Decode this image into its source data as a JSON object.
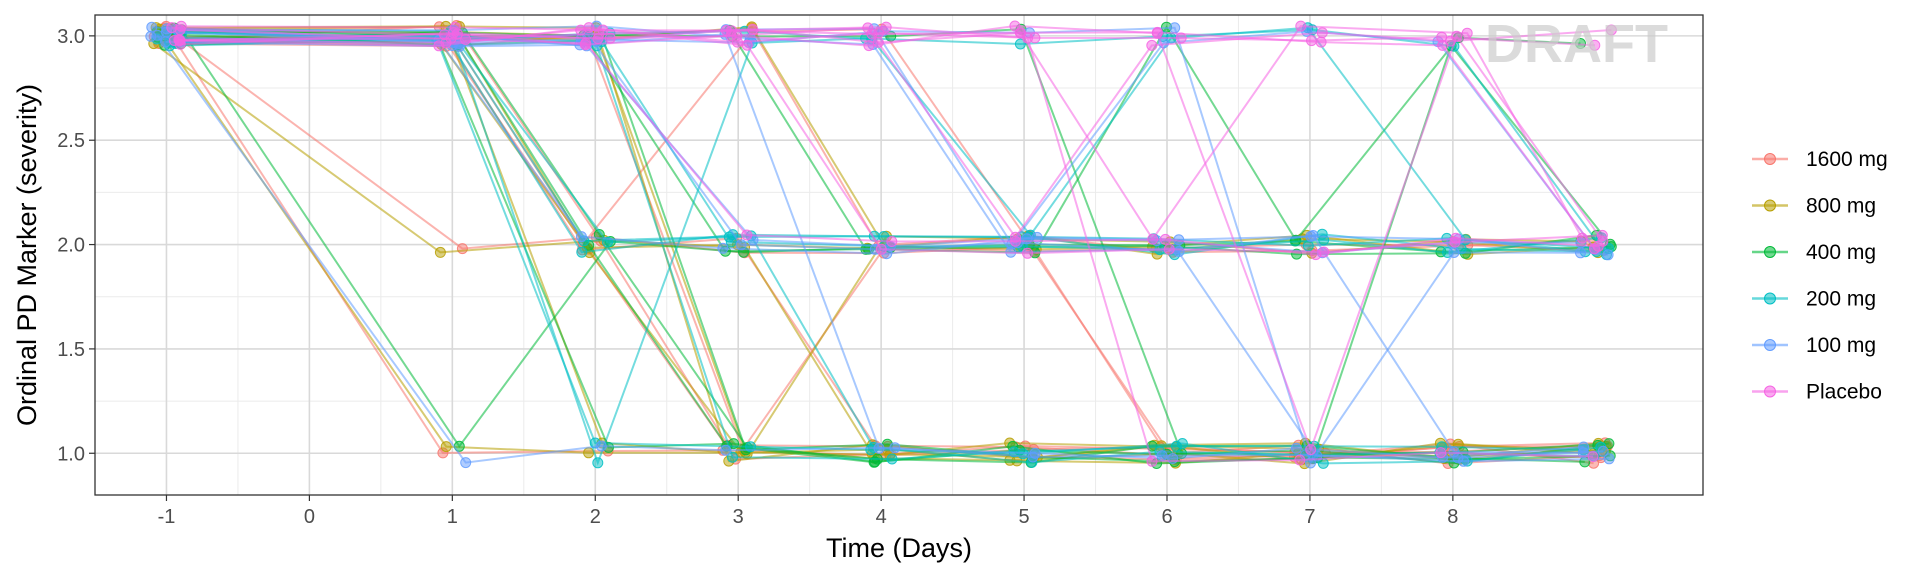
{
  "chart_data": {
    "type": "line",
    "title": "",
    "xlabel": "Time (Days)",
    "ylabel": "Ordinal PD Marker (severity)",
    "x_ticks": [
      -1,
      0,
      1,
      2,
      3,
      4,
      5,
      6,
      7,
      8
    ],
    "y_ticks": [
      1.0,
      1.5,
      2.0,
      2.5,
      3.0
    ],
    "xlim": [
      -1.5,
      9.75
    ],
    "ylim": [
      0.8,
      3.1
    ],
    "grid": true,
    "legend_position": "right",
    "watermark": "DRAFT",
    "times": [
      -1,
      1,
      2,
      3,
      4,
      5,
      6,
      7,
      8,
      9
    ],
    "series": [
      {
        "name": "1600 mg",
        "color": "#F8766D",
        "subjects": [
          [
            3,
            3,
            2,
            1,
            1,
            1,
            1,
            1,
            1,
            1
          ],
          [
            3,
            3,
            3,
            3,
            2,
            2,
            2,
            2,
            2,
            2
          ],
          [
            3,
            2,
            2,
            2,
            2,
            2,
            1,
            1,
            1,
            1
          ],
          [
            3,
            3,
            2,
            1,
            1,
            1,
            1,
            1,
            1,
            1
          ],
          [
            3,
            1,
            1,
            1,
            1,
            1,
            1,
            1,
            1,
            1
          ],
          [
            3,
            3,
            2,
            2,
            1,
            1,
            1,
            1,
            1,
            1
          ],
          [
            3,
            3,
            3,
            1,
            2,
            2,
            2,
            2,
            2,
            2
          ],
          [
            3,
            3,
            2,
            3,
            3,
            2,
            1,
            1,
            1,
            1
          ]
        ]
      },
      {
        "name": "800 mg",
        "color": "#B79F00",
        "subjects": [
          [
            3,
            2,
            2,
            2,
            1,
            1,
            1,
            1,
            1,
            1
          ],
          [
            3,
            1,
            1,
            1,
            1,
            1,
            1,
            1,
            1,
            1
          ],
          [
            3,
            3,
            3,
            3,
            2,
            2,
            2,
            2,
            2,
            2
          ],
          [
            3,
            3,
            1,
            1,
            2,
            2,
            2,
            2,
            2,
            2
          ],
          [
            3,
            3,
            3,
            1,
            1,
            1,
            1,
            1,
            1,
            1
          ],
          [
            3,
            3,
            2,
            2,
            2,
            2,
            2,
            2,
            2,
            2
          ],
          [
            3,
            3,
            2,
            1,
            1,
            1,
            1,
            1,
            1,
            1
          ],
          [
            3,
            3,
            3,
            1,
            1,
            1,
            1,
            1,
            1,
            1
          ]
        ]
      },
      {
        "name": "400 mg",
        "color": "#00BA38",
        "subjects": [
          [
            3,
            1,
            2,
            2,
            2,
            2,
            2,
            2,
            2,
            2
          ],
          [
            3,
            3,
            2,
            1,
            1,
            1,
            1,
            1,
            1,
            1
          ],
          [
            3,
            3,
            3,
            2,
            2,
            2,
            3,
            2,
            3,
            3
          ],
          [
            3,
            3,
            3,
            3,
            2,
            2,
            2,
            2,
            2,
            2
          ],
          [
            3,
            3,
            1,
            1,
            1,
            1,
            1,
            1,
            1,
            1
          ],
          [
            3,
            3,
            3,
            3,
            3,
            3,
            1,
            1,
            1,
            1
          ],
          [
            3,
            3,
            2,
            1,
            1,
            1,
            1,
            1,
            1,
            1
          ],
          [
            3,
            3,
            3,
            1,
            1,
            1,
            1,
            1,
            3,
            2
          ]
        ]
      },
      {
        "name": "200 mg",
        "color": "#00BFC4",
        "subjects": [
          [
            3,
            3,
            1,
            3,
            3,
            3,
            3,
            3,
            3,
            2
          ],
          [
            3,
            3,
            2,
            2,
            2,
            2,
            2,
            2,
            2,
            2
          ],
          [
            3,
            3,
            3,
            1,
            1,
            1,
            1,
            1,
            1,
            1
          ],
          [
            3,
            3,
            2,
            2,
            2,
            2,
            2,
            2,
            2,
            2
          ],
          [
            3,
            3,
            3,
            2,
            2,
            2,
            2,
            2,
            2,
            2
          ],
          [
            3,
            3,
            1,
            1,
            1,
            1,
            1,
            1,
            1,
            1
          ],
          [
            3,
            3,
            3,
            3,
            3,
            2,
            3,
            3,
            2,
            2
          ],
          [
            3,
            3,
            2,
            2,
            1,
            1,
            1,
            1,
            1,
            1
          ]
        ]
      },
      {
        "name": "100 mg",
        "color": "#619CFF",
        "subjects": [
          [
            3,
            1,
            1,
            1,
            1,
            1,
            1,
            1,
            1,
            1
          ],
          [
            3,
            3,
            3,
            3,
            3,
            2,
            2,
            1,
            1,
            1
          ],
          [
            3,
            3,
            3,
            2,
            2,
            2,
            2,
            2,
            2,
            2
          ],
          [
            3,
            3,
            3,
            3,
            3,
            2,
            3,
            3,
            3,
            2
          ],
          [
            3,
            3,
            3,
            2,
            2,
            2,
            2,
            2,
            1,
            1
          ],
          [
            3,
            3,
            2,
            2,
            2,
            2,
            2,
            2,
            2,
            2
          ],
          [
            3,
            3,
            3,
            3,
            3,
            3,
            3,
            1,
            2,
            2
          ],
          [
            3,
            3,
            3,
            3,
            1,
            1,
            1,
            1,
            1,
            1
          ]
        ]
      },
      {
        "name": "Placebo",
        "color": "#F564E3",
        "subjects": [
          [
            3,
            3,
            3,
            3,
            3,
            3,
            3,
            3,
            3,
            3
          ],
          [
            3,
            3,
            3,
            3,
            3,
            3,
            3,
            3,
            3,
            2
          ],
          [
            3,
            3,
            3,
            2,
            2,
            2,
            2,
            2,
            2,
            2
          ],
          [
            3,
            3,
            3,
            3,
            3,
            3,
            1,
            1,
            1,
            1
          ],
          [
            3,
            3,
            3,
            3,
            3,
            2,
            3,
            3,
            3,
            3
          ],
          [
            3,
            3,
            3,
            3,
            2,
            2,
            2,
            2,
            2,
            2
          ],
          [
            3,
            3,
            3,
            3,
            3,
            3,
            2,
            3,
            3,
            2
          ],
          [
            3,
            3,
            3,
            3,
            3,
            3,
            3,
            1,
            3,
            2
          ]
        ]
      }
    ]
  }
}
